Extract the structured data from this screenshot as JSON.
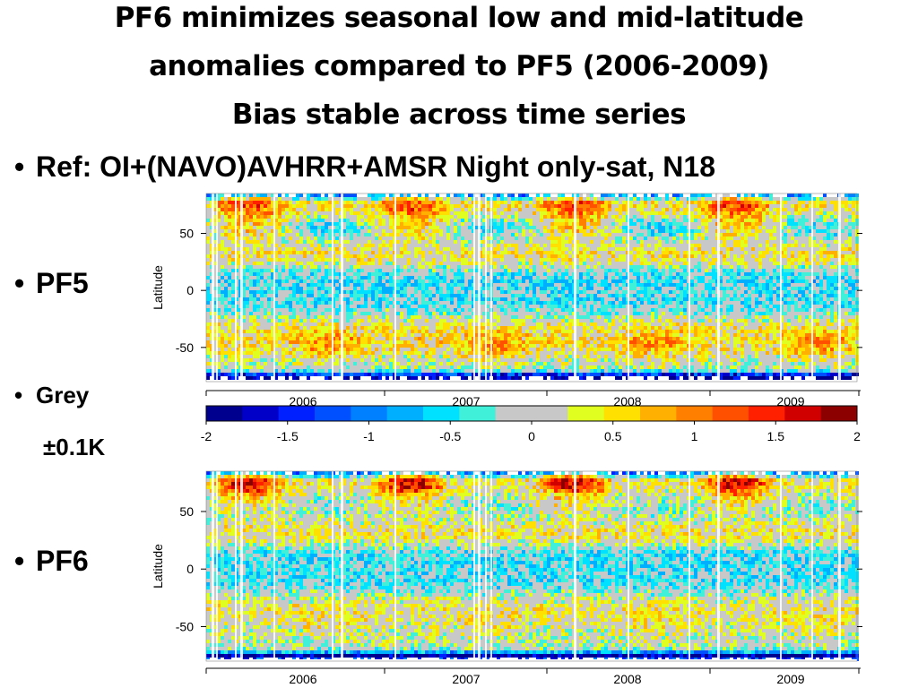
{
  "slide": {
    "title_lines": [
      "PF6 minimizes seasonal low and mid-latitude",
      "anomalies compared to PF5 (2006-2009)",
      "Bias stable across time series"
    ],
    "bullets": {
      "ref": "Ref: OI+(NAVO)AVHRR+AMSR Night only-sat, N18",
      "pf5": "PF5",
      "grey_line1": "Grey",
      "grey_line2": "±0.1K",
      "pf6": "PF6"
    },
    "bullet_symbol": "•"
  },
  "chart_data": [
    {
      "type": "heatmap",
      "panel": "PF5",
      "ylabel": "Latitude",
      "xlabel": "",
      "x_ticks": [
        "2006",
        "2007",
        "2008",
        "2009"
      ],
      "y_ticks": [
        50,
        0,
        -50
      ],
      "ylim": [
        -80,
        85
      ],
      "xlim": [
        2005.5,
        2009.5
      ],
      "grey_band": [
        -0.1,
        0.1
      ],
      "warm_anomaly_regions": [
        "high northern latitudes in boreal summer",
        "southern mid-latitudes around -50"
      ],
      "cold_anomaly_regions": [
        "southern ice edge near -75",
        "northern ice edge near 80"
      ]
    },
    {
      "type": "heatmap",
      "panel": "PF6",
      "ylabel": "Latitude",
      "xlabel": "",
      "x_ticks": [
        "2006",
        "2007",
        "2008",
        "2009"
      ],
      "y_ticks": [
        50,
        0,
        -50
      ],
      "ylim": [
        -80,
        85
      ],
      "xlim": [
        2005.5,
        2009.5
      ],
      "grey_band": [
        -0.1,
        0.1
      ],
      "warm_anomaly_regions": [
        "high northern latitudes in boreal summer"
      ],
      "cold_anomaly_regions": [
        "southern ice edge near -75",
        "northern ice edge near 80"
      ]
    }
  ],
  "colorbar": {
    "min": -2,
    "max": 2,
    "tick_labels": [
      "-2",
      "-1.5",
      "-1",
      "-0.5",
      "0",
      "0.5",
      "1",
      "1.5",
      "2"
    ],
    "colors": [
      "#00008f",
      "#0000c8",
      "#0020ff",
      "#0050ff",
      "#0080ff",
      "#00b0ff",
      "#00e0ff",
      "#40f0d8",
      "#c8c8c8",
      "#c8c8c8",
      "#e0ff20",
      "#ffe000",
      "#ffb000",
      "#ff8000",
      "#ff5000",
      "#ff2000",
      "#d00000",
      "#8c0000"
    ]
  }
}
